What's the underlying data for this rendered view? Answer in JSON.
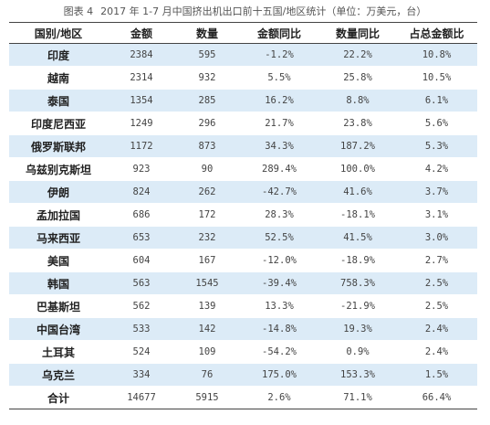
{
  "caption": {
    "figure_no": "图表 4",
    "title": "2017 年 1-7 月中国挤出机出口前十五国/地区统计（单位：万美元，台）"
  },
  "table": {
    "headers": [
      "国别/地区",
      "金额",
      "数量",
      "金额同比",
      "数量同比",
      "占总金额比"
    ],
    "rows": [
      [
        "印度",
        "2384",
        "595",
        "-1.2%",
        "22.2%",
        "10.8%"
      ],
      [
        "越南",
        "2314",
        "932",
        "5.5%",
        "25.8%",
        "10.5%"
      ],
      [
        "泰国",
        "1354",
        "285",
        "16.2%",
        "8.8%",
        "6.1%"
      ],
      [
        "印度尼西亚",
        "1249",
        "296",
        "21.7%",
        "23.8%",
        "5.6%"
      ],
      [
        "俄罗斯联邦",
        "1172",
        "873",
        "34.3%",
        "187.2%",
        "5.3%"
      ],
      [
        "乌兹别克斯坦",
        "923",
        "90",
        "289.4%",
        "100.0%",
        "4.2%"
      ],
      [
        "伊朗",
        "824",
        "262",
        "-42.7%",
        "41.6%",
        "3.7%"
      ],
      [
        "孟加拉国",
        "686",
        "172",
        "28.3%",
        "-18.1%",
        "3.1%"
      ],
      [
        "马来西亚",
        "653",
        "232",
        "52.5%",
        "41.5%",
        "3.0%"
      ],
      [
        "美国",
        "604",
        "167",
        "-12.0%",
        "-18.9%",
        "2.7%"
      ],
      [
        "韩国",
        "563",
        "1545",
        "-39.4%",
        "758.3%",
        "2.5%"
      ],
      [
        "巴基斯坦",
        "562",
        "139",
        "13.3%",
        "-21.9%",
        "2.5%"
      ],
      [
        "中国台湾",
        "533",
        "142",
        "-14.8%",
        "19.3%",
        "2.4%"
      ],
      [
        "土耳其",
        "524",
        "109",
        "-54.2%",
        "0.9%",
        "2.4%"
      ],
      [
        "乌克兰",
        "334",
        "76",
        "175.0%",
        "153.3%",
        "1.5%"
      ],
      [
        "合计",
        "14677",
        "5915",
        "2.6%",
        "71.1%",
        "66.4%"
      ]
    ]
  },
  "colors": {
    "stripe": "#dcebf7",
    "rule": "#444444"
  }
}
